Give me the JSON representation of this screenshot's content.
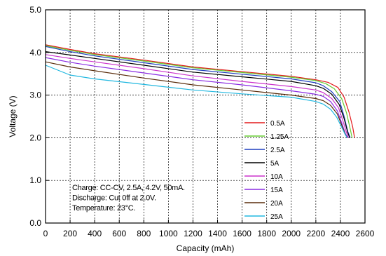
{
  "chart_data": {
    "type": "line",
    "xlabel": "Capacity (mAh)",
    "ylabel": "Voltage (V)",
    "xlim": [
      0,
      2600
    ],
    "ylim": [
      0.0,
      5.0
    ],
    "xticks": [
      0,
      200,
      400,
      600,
      800,
      1000,
      1200,
      1400,
      1600,
      1800,
      2000,
      2200,
      2400,
      2600
    ],
    "yticks": [
      "0.0",
      "1.0",
      "2.0",
      "3.0",
      "4.0",
      "5.0"
    ],
    "grid": "dashed",
    "legend_position": "right-center",
    "annotation": [
      "Charge: CC-CV, 2.5A, 4.2V, 50mA.",
      "Discharge: Cut 0ff at 2.0V.",
      "Temperature: 23°C."
    ],
    "series": [
      {
        "name": "0.5A",
        "color": "#e31a1c",
        "x": [
          0,
          200,
          400,
          800,
          1200,
          1600,
          2000,
          2200,
          2300,
          2380,
          2430,
          2470,
          2500,
          2515
        ],
        "y": [
          4.18,
          4.07,
          3.97,
          3.82,
          3.66,
          3.55,
          3.44,
          3.36,
          3.3,
          3.18,
          2.95,
          2.6,
          2.25,
          2.0
        ]
      },
      {
        "name": "1.25A",
        "color": "#66cc33",
        "x": [
          0,
          200,
          400,
          800,
          1200,
          1600,
          2000,
          2200,
          2280,
          2350,
          2410,
          2450,
          2480,
          2495
        ],
        "y": [
          4.16,
          4.05,
          3.95,
          3.8,
          3.64,
          3.53,
          3.42,
          3.34,
          3.27,
          3.15,
          2.92,
          2.58,
          2.2,
          2.0
        ]
      },
      {
        "name": "2.5A",
        "color": "#1f3fbf",
        "x": [
          0,
          200,
          400,
          800,
          1200,
          1600,
          2000,
          2200,
          2260,
          2330,
          2395,
          2430,
          2460,
          2480
        ],
        "y": [
          4.14,
          4.02,
          3.92,
          3.76,
          3.6,
          3.49,
          3.38,
          3.29,
          3.22,
          3.08,
          2.85,
          2.5,
          2.15,
          2.0
        ]
      },
      {
        "name": "5A",
        "color": "#000000",
        "x": [
          0,
          200,
          400,
          800,
          1200,
          1600,
          2000,
          2200,
          2260,
          2330,
          2390,
          2430,
          2460,
          2475
        ],
        "y": [
          4.02,
          3.94,
          3.86,
          3.7,
          3.54,
          3.43,
          3.32,
          3.22,
          3.16,
          3.02,
          2.78,
          2.45,
          2.12,
          2.0
        ]
      },
      {
        "name": "10A",
        "color": "#cc33cc",
        "x": [
          0,
          200,
          400,
          800,
          1200,
          1600,
          2000,
          2200,
          2260,
          2330,
          2385,
          2420,
          2450,
          2465
        ],
        "y": [
          3.95,
          3.86,
          3.78,
          3.62,
          3.45,
          3.32,
          3.2,
          3.12,
          3.06,
          2.92,
          2.7,
          2.4,
          2.12,
          2.0
        ]
      },
      {
        "name": "15A",
        "color": "#8a2be2",
        "x": [
          0,
          200,
          400,
          800,
          1200,
          1600,
          2000,
          2200,
          2260,
          2320,
          2375,
          2410,
          2440,
          2460
        ],
        "y": [
          3.88,
          3.77,
          3.68,
          3.52,
          3.36,
          3.24,
          3.1,
          3.02,
          2.97,
          2.85,
          2.63,
          2.35,
          2.1,
          2.0
        ]
      },
      {
        "name": "20A",
        "color": "#5a2d0c",
        "x": [
          0,
          200,
          400,
          800,
          1200,
          1600,
          2000,
          2200,
          2260,
          2320,
          2375,
          2410,
          2440,
          2455
        ],
        "y": [
          3.78,
          3.66,
          3.57,
          3.4,
          3.24,
          3.12,
          3.0,
          2.92,
          2.87,
          2.76,
          2.56,
          2.3,
          2.08,
          2.0
        ]
      },
      {
        "name": "25A",
        "color": "#22b8e0",
        "x": [
          0,
          200,
          400,
          800,
          1200,
          1600,
          2000,
          2200,
          2260,
          2320,
          2370,
          2410,
          2440,
          2455
        ],
        "y": [
          3.7,
          3.47,
          3.38,
          3.25,
          3.12,
          3.03,
          2.95,
          2.85,
          2.79,
          2.67,
          2.48,
          2.25,
          2.07,
          2.0
        ]
      }
    ]
  }
}
